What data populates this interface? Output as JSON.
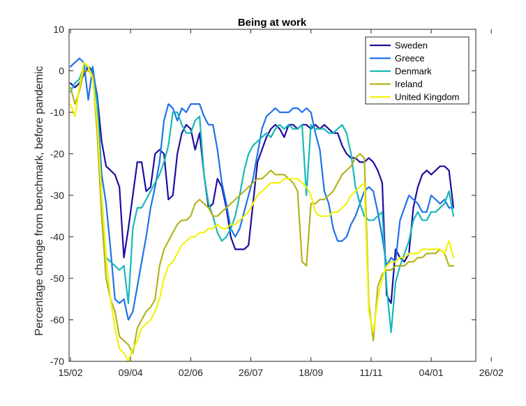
{
  "chart_data": {
    "type": "line",
    "title": "Being at work",
    "xlabel": "",
    "ylabel": "Percentage change from benchmark, before pandemic",
    "ylim": [
      -70,
      10
    ],
    "yticks": [
      10,
      0,
      -10,
      -20,
      -30,
      -40,
      -50,
      -60,
      -70
    ],
    "xticks": [
      "15/02",
      "09/04",
      "02/06",
      "26/07",
      "18/09",
      "11/11",
      "04/01",
      "26/02"
    ],
    "x_start": "15/02",
    "x_end": "26/02",
    "x_step_days": 4,
    "grid": false,
    "legend_position": "top-right",
    "series": [
      {
        "name": "Sweden",
        "color": "#1a0f9e",
        "values": [
          -3,
          -4,
          -3,
          -1,
          1,
          0,
          -6,
          -17,
          -23,
          -24,
          -25,
          -28,
          -45,
          -38,
          -30,
          -22,
          -22,
          -29,
          -28,
          -20,
          -19,
          -20,
          -31,
          -30,
          -20,
          -15,
          -13,
          -14,
          -19,
          -15,
          -25,
          -33,
          -32,
          -26,
          -28,
          -33,
          -40,
          -43,
          -43,
          -43,
          -42,
          -32,
          -22,
          -19,
          -16,
          -14,
          -13,
          -14,
          -16,
          -13,
          -13,
          -14,
          -13,
          -13,
          -14,
          -13,
          -14,
          -13,
          -14,
          -15,
          -15,
          -18,
          -20,
          -21,
          -21,
          -22,
          -22,
          -21,
          -22,
          -24,
          -27,
          -54,
          -56,
          -43,
          -45,
          -46,
          -44,
          -33,
          -28,
          -25,
          -24,
          -25,
          -24,
          -23,
          -23,
          -24,
          -33
        ]
      },
      {
        "name": "Greece",
        "color": "#1f72e8",
        "values": [
          1,
          2,
          3,
          2,
          -7,
          1,
          -7,
          -25,
          -32,
          -43,
          -55,
          -56,
          -55,
          -60,
          -58,
          -52,
          -46,
          -40,
          -33,
          -28,
          -22,
          -12,
          -8,
          -9,
          -12,
          -9,
          -10,
          -8,
          -8,
          -8,
          -11,
          -13,
          -13,
          -19,
          -27,
          -32,
          -38,
          -40,
          -38,
          -34,
          -30,
          -26,
          -20,
          -14,
          -11,
          -10,
          -9,
          -10,
          -10,
          -10,
          -9,
          -9,
          -10,
          -9,
          -10,
          -15,
          -19,
          -29,
          -32,
          -38,
          -41,
          -41,
          -40,
          -37,
          -35,
          -32,
          -29,
          -28,
          -29,
          -34,
          -40,
          -47,
          -45,
          -46,
          -36,
          -33,
          -30,
          -31,
          -32,
          -34,
          -34,
          -30,
          -31,
          -32,
          -31,
          -33,
          -33
        ]
      },
      {
        "name": "Denmark",
        "color": "#17b8b8",
        "values": [
          -5,
          -3,
          -2,
          1,
          1,
          -1,
          -8,
          -30,
          -45,
          -46,
          -47,
          -48,
          -47,
          -56,
          -38,
          -33,
          -33,
          -31,
          -29,
          -27,
          -25,
          -22,
          -18,
          -10,
          -10,
          -13,
          -15,
          -15,
          -12,
          -11,
          -25,
          -32,
          -35,
          -39,
          -41,
          -40,
          -38,
          -35,
          -30,
          -24,
          -20,
          -18,
          -17,
          -16,
          -15,
          -16,
          -14,
          -13,
          -14,
          -13,
          -14,
          -14,
          -13,
          -30,
          -13,
          -14,
          -14,
          -14,
          -15,
          -15,
          -14,
          -13,
          -15,
          -20,
          -28,
          -32,
          -35,
          -36,
          -36,
          -35,
          -34,
          -52,
          -63,
          -51,
          -47,
          -44,
          -41,
          -36,
          -34,
          -36,
          -36,
          -34,
          -34,
          -33,
          -32,
          -29,
          -35
        ]
      },
      {
        "name": "Ireland",
        "color": "#b4b41e",
        "values": [
          -4,
          -8,
          -5,
          0,
          0,
          -1,
          -15,
          -35,
          -50,
          -55,
          -58,
          -64,
          -65,
          -66,
          -68,
          -62,
          -60,
          -58,
          -57,
          -55,
          -47,
          -43,
          -41,
          -39,
          -37,
          -36,
          -36,
          -35,
          -32,
          -31,
          -32,
          -33,
          -35,
          -35,
          -34,
          -33,
          -32,
          -31,
          -30,
          -29,
          -28,
          -27,
          -26,
          -26,
          -25,
          -24,
          -25,
          -25,
          -25,
          -26,
          -27,
          -29,
          -46,
          -47,
          -32,
          -32,
          -31,
          -31,
          -30,
          -29,
          -27,
          -25,
          -24,
          -23,
          -21,
          -20,
          -21,
          -56,
          -65,
          -52,
          -49,
          -48,
          -48,
          -47,
          -47,
          -47,
          -46,
          -46,
          -45,
          -45,
          -44,
          -44,
          -44,
          -43,
          -44,
          -47,
          -47
        ]
      },
      {
        "name": "United Kingdom",
        "color": "#f2f20d",
        "values": [
          -8,
          -11,
          -4,
          2,
          1,
          -2,
          -12,
          -30,
          -45,
          -55,
          -62,
          -67,
          -68,
          -70,
          -67,
          -65,
          -62,
          -61,
          -60,
          -58,
          -55,
          -50,
          -47,
          -46,
          -44,
          -42,
          -41,
          -40,
          -40,
          -39,
          -39,
          -38,
          -38,
          -37,
          -38,
          -38,
          -37,
          -37,
          -36,
          -35,
          -34,
          -32,
          -30,
          -29,
          -28,
          -27,
          -27,
          -27,
          -26,
          -26,
          -26,
          -26,
          -27,
          -28,
          -30,
          -34,
          -35,
          -35,
          -35,
          -34,
          -34,
          -33,
          -32,
          -30,
          -29,
          -28,
          -27,
          -58,
          -63,
          -55,
          -50,
          -47,
          -46,
          -46,
          -45,
          -45,
          -44,
          -44,
          -44,
          -43,
          -43,
          -43,
          -43,
          -43,
          -44,
          -41,
          -45
        ]
      }
    ]
  }
}
